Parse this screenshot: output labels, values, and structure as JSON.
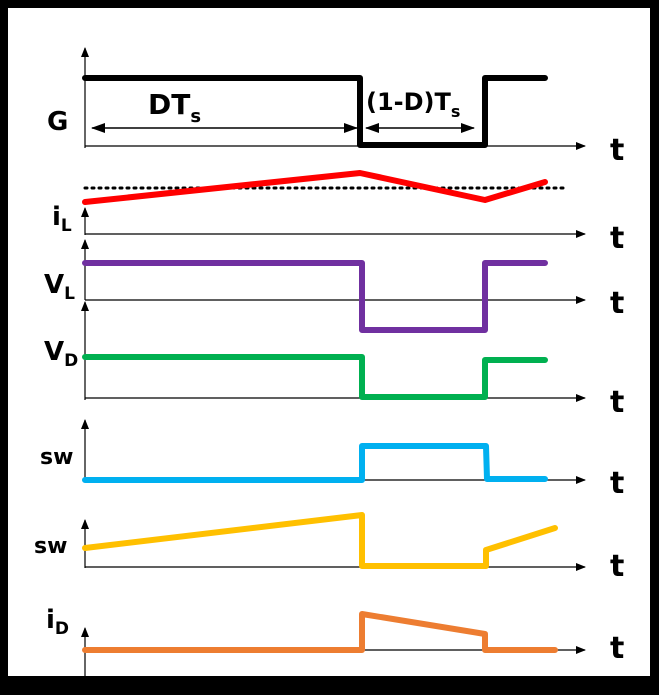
{
  "colors": {
    "gate": "#000000",
    "inductor_current": "#ff0000",
    "inductor_voltage": "#7030a0",
    "diode_voltage": "#00b050",
    "switch_voltage": "#00b0f0",
    "switch_current": "#ffc000",
    "diode_current": "#ed7d31"
  },
  "labels": {
    "gate": "G",
    "inductor_current": {
      "main": "i",
      "sub": "L"
    },
    "inductor_voltage": {
      "main": "V",
      "sub": "L"
    },
    "diode_voltage": {
      "main": "V",
      "sub": "D"
    },
    "switch_voltage": "sw",
    "switch_current": "sw",
    "diode_current": {
      "main": "i",
      "sub": "D"
    },
    "time_axis": "t",
    "on_interval": {
      "main": "DT",
      "sub": "s"
    },
    "off_interval": {
      "main": "(1-D)T",
      "sub": "s"
    }
  }
}
